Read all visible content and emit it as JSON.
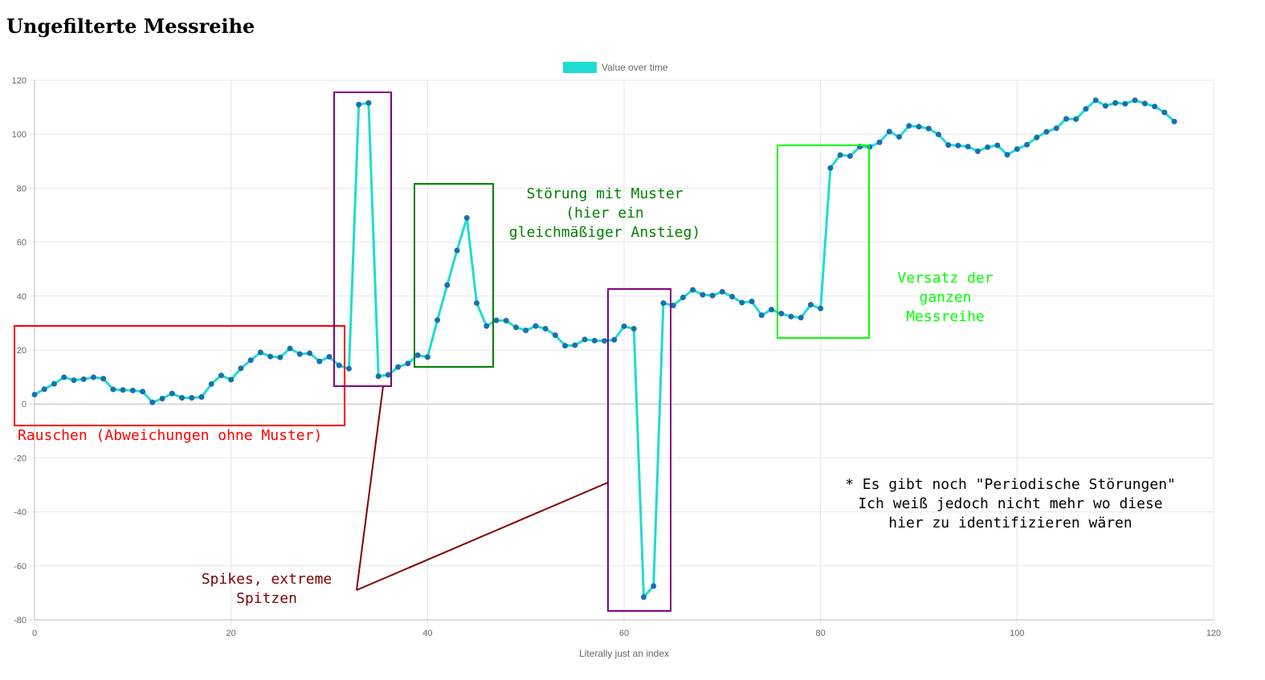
{
  "page": {
    "title": "Ungefilterte Messreihe"
  },
  "chart_data": {
    "type": "line",
    "title": "",
    "xlabel": "Literally just an index",
    "ylabel": "",
    "xlim": [
      0,
      120
    ],
    "ylim": [
      -80,
      120
    ],
    "x_ticks": [
      0,
      20,
      40,
      60,
      80,
      100,
      120
    ],
    "y_ticks": [
      -80,
      -60,
      -40,
      -20,
      0,
      20,
      40,
      60,
      80,
      100,
      120
    ],
    "grid": true,
    "legend_position": "top-center",
    "colors": {
      "line": "#1edcd0",
      "point": "#1a6fb0",
      "grid": "#e6e6e6",
      "zero_line": "#bbbbbb"
    },
    "series": [
      {
        "name": "Value over time",
        "x": [
          0,
          1,
          2,
          3,
          4,
          5,
          6,
          7,
          8,
          9,
          10,
          11,
          12,
          13,
          14,
          15,
          16,
          17,
          18,
          19,
          20,
          21,
          22,
          23,
          24,
          25,
          26,
          27,
          28,
          29,
          30,
          31,
          32,
          33,
          34,
          35,
          36,
          37,
          38,
          39,
          40,
          41,
          42,
          43,
          44,
          45,
          46,
          47,
          48,
          49,
          50,
          51,
          52,
          53,
          54,
          55,
          56,
          57,
          58,
          59,
          60,
          61,
          62,
          63,
          64,
          65,
          66,
          67,
          68,
          69,
          70,
          71,
          72,
          73,
          74,
          75,
          76,
          77,
          78,
          79,
          80,
          81,
          82,
          83,
          84,
          85,
          86,
          87,
          88,
          89,
          90,
          91,
          92,
          93,
          94,
          95,
          96,
          97,
          98,
          99,
          100,
          101,
          102,
          103,
          104,
          105,
          106,
          107,
          108,
          109,
          110,
          111,
          112,
          113,
          114,
          115,
          116
        ],
        "y": [
          3.5,
          5.5,
          7.5,
          9.9,
          8.8,
          9.2,
          9.9,
          9.4,
          5.4,
          5.2,
          5.0,
          4.6,
          0.6,
          2.0,
          3.9,
          2.3,
          2.3,
          2.6,
          7.4,
          10.6,
          9.0,
          13.2,
          16.2,
          19.1,
          17.6,
          17.3,
          20.6,
          18.5,
          18.8,
          15.8,
          17.5,
          14.3,
          13.1,
          111.0,
          111.6,
          10.3,
          10.8,
          13.7,
          15.0,
          18.1,
          17.4,
          31.1,
          44.1,
          56.9,
          69.0,
          37.4,
          28.9,
          31.0,
          30.9,
          28.4,
          27.3,
          28.9,
          27.9,
          25.5,
          21.6,
          21.8,
          23.9,
          23.5,
          23.4,
          23.8,
          28.8,
          27.9,
          -71.6,
          -67.5,
          37.4,
          36.5,
          39.5,
          42.3,
          40.5,
          40.2,
          41.6,
          39.8,
          37.6,
          38.0,
          32.9,
          35.0,
          33.5,
          32.4,
          32.0,
          36.8,
          35.4,
          87.5,
          92.3,
          91.9,
          95.4,
          95.3,
          97.0,
          101.0,
          99.0,
          103.1,
          102.8,
          102.1,
          99.9,
          96.0,
          95.8,
          95.4,
          93.7,
          95.2,
          95.9,
          92.4,
          94.5,
          96.1,
          98.8,
          100.9,
          102.2,
          105.7,
          105.6,
          109.4,
          112.6,
          110.5,
          111.6,
          111.3,
          112.6,
          111.4,
          110.3,
          108.1,
          104.7
        ]
      }
    ],
    "annotations": [
      {
        "label_lines": [
          "Rauschen (Abweichungen ohne Muster)"
        ],
        "color": "#ff0000"
      },
      {
        "label_lines": [
          "Störung mit Muster",
          "(hier ein",
          "gleichmäßiger Anstieg)"
        ],
        "color": "#008000"
      },
      {
        "label_lines": [
          "Versatz der",
          "ganzen",
          "Messreihe"
        ],
        "color": "#00ff00"
      },
      {
        "label_lines": [
          "Spikes, extreme",
          "Spitzen"
        ],
        "color": "#800000"
      },
      {
        "label_lines": [
          "* Es gibt noch \"Periodische Störungen\"",
          "Ich weiß jedoch nicht mehr wo diese",
          "hier zu identifizieren wären"
        ],
        "color": "#000000"
      }
    ]
  }
}
